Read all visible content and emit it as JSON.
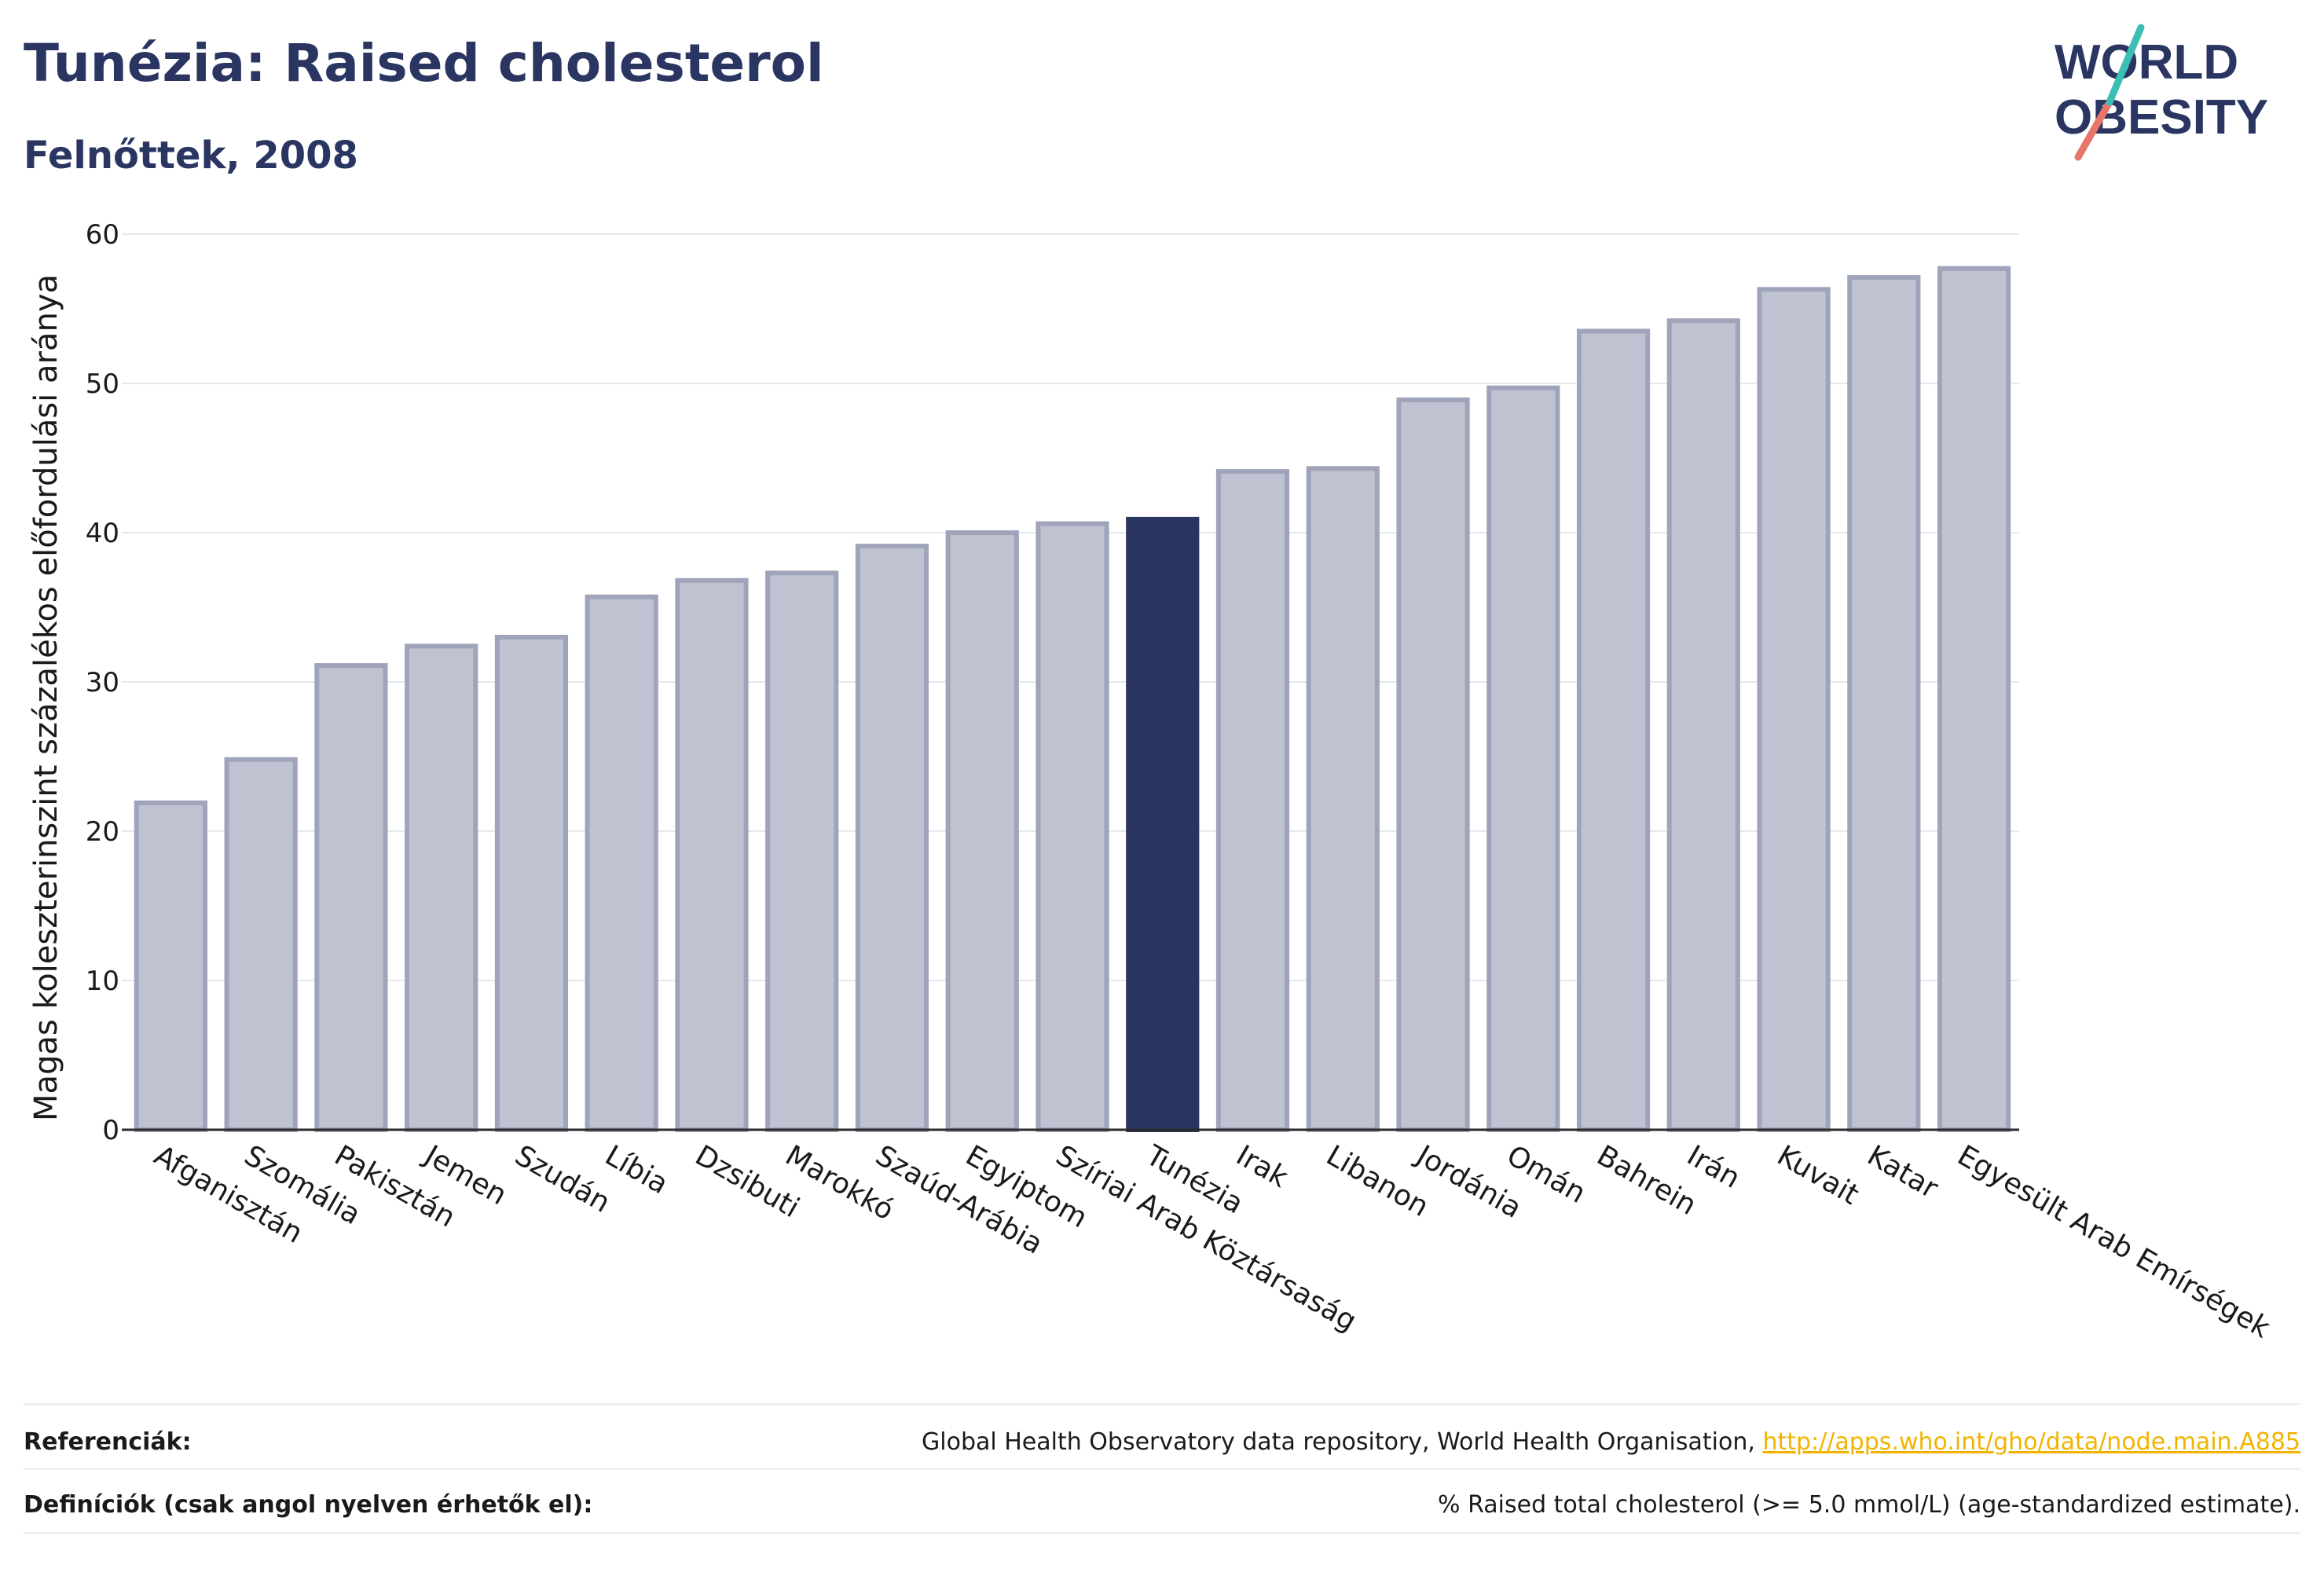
{
  "title": "Tunézia: Raised cholesterol",
  "subtitle": "Felnőttek, 2008",
  "logo": {
    "line1": "WORLD",
    "line2": "OBESITY"
  },
  "colors": {
    "bar": "#bfc2d0",
    "bar_stroke": "#9fa4ba",
    "highlight": "#2a3561",
    "grid": "#e6e8ee",
    "text": "#2a3561"
  },
  "chart_data": {
    "type": "bar",
    "ylabel": "Magas koleszterinszint százalékos előfordulási aránya",
    "ylim": [
      0,
      60
    ],
    "yticks": [
      0,
      10,
      20,
      30,
      40,
      50,
      60
    ],
    "grid": true,
    "highlight": "Tunézia",
    "categories": [
      "Afganisztán",
      "Szomália",
      "Pakisztán",
      "Jemen",
      "Szudán",
      "Líbia",
      "Dzsibuti",
      "Marokkó",
      "Szaúd-Arábia",
      "Egyiptom",
      "Szíriai Arab Köztársaság",
      "Tunézia",
      "Irak",
      "Libanon",
      "Jordánia",
      "Omán",
      "Bahrein",
      "Irán",
      "Kuvait",
      "Katar",
      "Egyesült Arab Emírségek"
    ],
    "values": [
      21.9,
      24.8,
      31.1,
      32.4,
      33.0,
      35.7,
      36.8,
      37.3,
      39.1,
      40.0,
      40.6,
      40.9,
      44.1,
      44.3,
      48.9,
      49.7,
      53.5,
      54.2,
      56.3,
      57.1,
      57.7
    ]
  },
  "footer": {
    "ref_label": "Referenciák:",
    "ref_text": "Global Health Observatory data repository, World Health Organisation, ",
    "ref_link": "http://apps.who.int/gho/data/node.main.A885",
    "def_label": "Definíciók (csak angol nyelven érhetők el):",
    "def_text": "% Raised total cholesterol (>= 5.0 mmol/L) (age-standardized estimate)."
  }
}
